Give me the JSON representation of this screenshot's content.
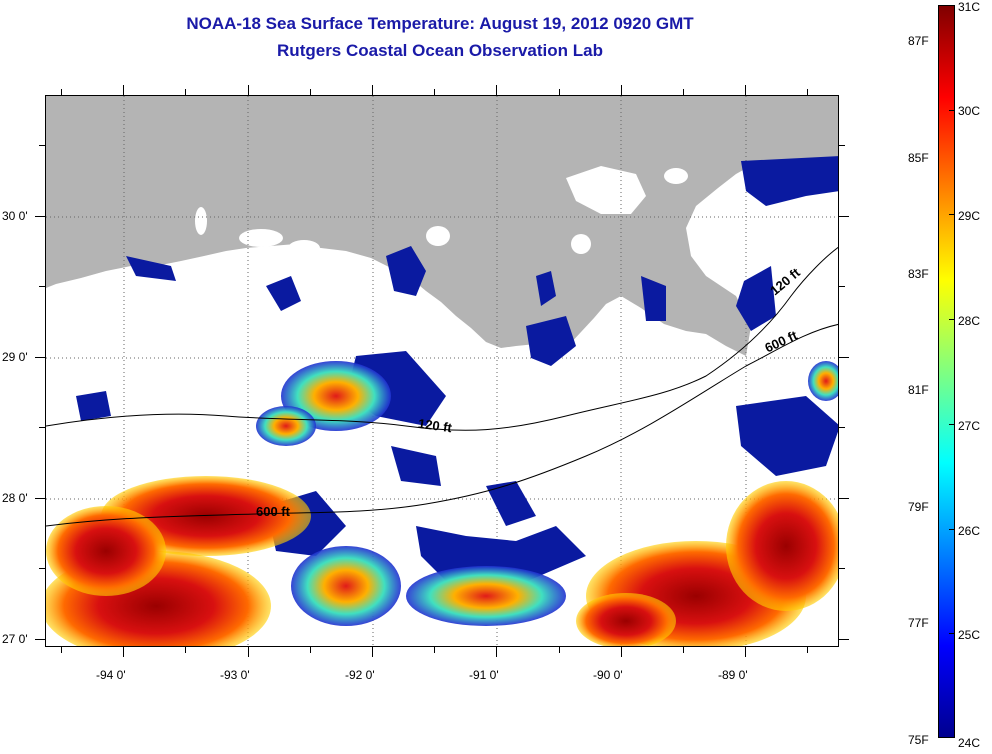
{
  "title": {
    "line1": "NOAA-18 Sea Surface Temperature:  August 19, 2012 0920 GMT",
    "line2": "Rutgers Coastal Ocean Observation Lab"
  },
  "map": {
    "lat_labels": [
      "30 0'",
      "29 0'",
      "28 0'",
      "27 0'"
    ],
    "lon_labels": [
      "-94 0'",
      "-93 0'",
      "-92 0'",
      "-91 0'",
      "-90 0'",
      "-89 0'"
    ],
    "contours": [
      {
        "label": "120 ft"
      },
      {
        "label": "600 ft"
      },
      {
        "label": "120 ft"
      },
      {
        "label": "600 ft"
      }
    ],
    "land_color": "#b4b4b4"
  },
  "colorbar": {
    "celsius_labels": [
      "31C",
      "30C",
      "29C",
      "28C",
      "27C",
      "26C",
      "25C",
      "24C"
    ],
    "fahrenheit_labels": [
      "87F",
      "85F",
      "83F",
      "81F",
      "79F",
      "77F",
      "75F"
    ],
    "colors": [
      "#00008f",
      "#0000ff",
      "#0080ff",
      "#00ffff",
      "#80ff80",
      "#ffff00",
      "#ff8000",
      "#ff0000",
      "#800000"
    ]
  }
}
